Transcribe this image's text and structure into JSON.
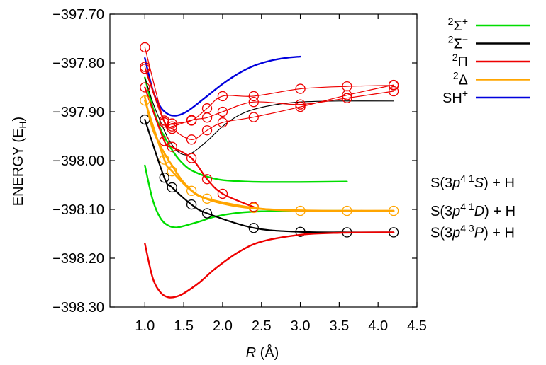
{
  "chart_data": {
    "type": "line",
    "xlabel_var": "R",
    "xlabel_unit": " (Å)",
    "ylabel_main": "ENERGY (E",
    "ylabel_sub": "H",
    "ylabel_end": ")",
    "xlim": [
      0.55,
      4.5
    ],
    "ylim": [
      -398.3,
      -397.7
    ],
    "xticks": [
      1.0,
      1.5,
      2.0,
      2.5,
      3.0,
      3.5,
      4.0,
      4.5
    ],
    "xtick_labels": [
      "1.0",
      "1.5",
      "2.0",
      "2.5",
      "3.0",
      "3.5",
      "4.0",
      "4.5"
    ],
    "yticks": [
      -397.7,
      -397.8,
      -397.9,
      -398.0,
      -398.1,
      -398.2,
      -398.3
    ],
    "ytick_labels": [
      "−397.70",
      "−397.80",
      "−397.90",
      "−398.00",
      "−398.10",
      "−398.20",
      "−398.30"
    ],
    "grid": false,
    "legend_position": "outside-right-top",
    "legend": [
      {
        "sup": "2",
        "base": "Σ",
        "sup2": "+",
        "color": "#00dd00"
      },
      {
        "sup": "2",
        "base": "Σ",
        "sup2": "−",
        "color": "#000000"
      },
      {
        "sup": "2",
        "base": "Π",
        "sup2": "",
        "color": "#ee0000"
      },
      {
        "sup": "2",
        "base": "Δ",
        "sup2": "",
        "color": "#ffa500"
      },
      {
        "sup": "",
        "base": "SH",
        "sup2": "+",
        "color": "#0000dd"
      }
    ],
    "asymptote_labels": [
      {
        "pre": "S(3",
        "orb": "p",
        "exp": "4 1",
        "term": "S",
        "post": ") + H",
        "y": -398.045
      },
      {
        "pre": "S(3",
        "orb": "p",
        "exp": "4 1",
        "term": "D",
        "post": ") + H",
        "y": -398.103
      },
      {
        "pre": "S(3",
        "orb": "p",
        "exp": "4 3",
        "term": "P",
        "post": ") + H",
        "y": -398.147
      }
    ],
    "series": [
      {
        "state": "SH+",
        "color": "#0000dd",
        "width": 2.4,
        "markers": false,
        "x": [
          1.0,
          1.1,
          1.2,
          1.3,
          1.4,
          1.5,
          1.6,
          1.8,
          2.0,
          2.2,
          2.4,
          2.6,
          2.8,
          3.0
        ],
        "y": [
          -397.79,
          -397.855,
          -397.89,
          -397.905,
          -397.908,
          -397.903,
          -397.893,
          -397.868,
          -397.843,
          -397.822,
          -397.806,
          -397.796,
          -397.79,
          -397.787
        ]
      },
      {
        "state": "2Σ+",
        "color": "#00dd00",
        "width": 2.4,
        "markers": false,
        "x": [
          1.0,
          1.1,
          1.2,
          1.3,
          1.4,
          1.5,
          1.7,
          1.9,
          2.2,
          2.5,
          3.0,
          3.6
        ],
        "y": [
          -398.01,
          -398.08,
          -398.118,
          -398.133,
          -398.137,
          -398.134,
          -398.125,
          -398.115,
          -398.107,
          -398.104,
          -398.103,
          -398.103
        ]
      },
      {
        "state": "2Σ+",
        "color": "#00dd00",
        "width": 2.4,
        "markers": false,
        "x": [
          1.0,
          1.1,
          1.2,
          1.3,
          1.4,
          1.5,
          1.6,
          1.8,
          2.0,
          2.3,
          2.6,
          3.0,
          3.6
        ],
        "y": [
          -397.83,
          -397.89,
          -397.935,
          -397.965,
          -397.99,
          -398.008,
          -398.02,
          -398.033,
          -398.04,
          -398.043,
          -398.044,
          -398.044,
          -398.043
        ]
      },
      {
        "state": "2Σ-",
        "color": "#000000",
        "width": 2.2,
        "markers": true,
        "x": [
          1.0,
          1.25,
          1.35,
          1.6,
          1.8,
          2.4,
          3.0,
          3.6,
          4.2
        ],
        "y": [
          -397.916,
          -398.035,
          -398.055,
          -398.09,
          -398.108,
          -398.138,
          -398.146,
          -398.147,
          -398.147
        ]
      },
      {
        "state": "2Σ-",
        "color": "#000000",
        "width": 1.2,
        "markers": false,
        "x": [
          1.0,
          1.1,
          1.2,
          1.3,
          1.4,
          1.5,
          1.6,
          1.8,
          2.0,
          2.2,
          2.4,
          2.7,
          3.0,
          3.5,
          4.2
        ],
        "y": [
          -397.83,
          -397.88,
          -397.92,
          -397.955,
          -397.978,
          -397.988,
          -397.985,
          -397.96,
          -397.93,
          -397.908,
          -397.895,
          -397.885,
          -397.88,
          -397.878,
          -397.878
        ]
      },
      {
        "state": "2Π",
        "color": "#ee0000",
        "width": 2.4,
        "markers": false,
        "x": [
          1.0,
          1.1,
          1.2,
          1.3,
          1.4,
          1.5,
          1.7,
          1.9,
          2.2,
          2.5,
          3.0,
          3.5,
          4.2
        ],
        "y": [
          -398.17,
          -398.24,
          -398.27,
          -398.28,
          -398.279,
          -398.272,
          -398.25,
          -398.222,
          -398.188,
          -398.166,
          -398.152,
          -398.148,
          -398.147
        ]
      },
      {
        "state": "2Π",
        "color": "#ee0000",
        "width": 2.2,
        "markers": true,
        "x": [
          1.0,
          1.25,
          1.35,
          1.6,
          1.8,
          2.0,
          2.4
        ],
        "y": [
          -397.85,
          -397.96,
          -397.972,
          -397.995,
          -398.038,
          -398.068,
          -398.095
        ]
      },
      {
        "state": "2Π",
        "color": "#ee0000",
        "width": 1.2,
        "markers": true,
        "x": [
          1.0,
          1.25,
          1.35,
          1.6,
          1.8,
          2.0,
          2.4,
          3.0,
          3.6,
          4.2
        ],
        "y": [
          -397.768,
          -397.922,
          -397.93,
          -397.917,
          -397.912,
          -397.9,
          -397.88,
          -397.885,
          -397.872,
          -397.858
        ]
      },
      {
        "state": "2Π",
        "color": "#ee0000",
        "width": 1.2,
        "markers": true,
        "x": [
          1.0,
          1.25,
          1.35,
          1.6,
          1.8,
          2.0,
          2.4,
          3.0,
          3.6,
          4.2
        ],
        "y": [
          -397.808,
          -397.918,
          -397.935,
          -397.957,
          -397.938,
          -397.922,
          -397.911,
          -397.89,
          -397.866,
          -397.845
        ]
      },
      {
        "state": "2Π",
        "color": "#ee0000",
        "width": 1.2,
        "markers": true,
        "x": [
          1.0,
          1.25,
          1.35,
          1.6,
          1.8,
          2.0,
          2.4,
          3.0,
          3.6,
          4.2
        ],
        "y": [
          -397.812,
          -397.922,
          -397.924,
          -397.918,
          -397.893,
          -397.868,
          -397.868,
          -397.853,
          -397.848,
          -397.846
        ]
      },
      {
        "state": "2Δ",
        "color": "#ffa500",
        "width": 2.6,
        "markers": true,
        "x": [
          1.0,
          1.25,
          1.35,
          1.6,
          1.8,
          2.4,
          3.0,
          3.6,
          4.2
        ],
        "y": [
          -397.877,
          -397.998,
          -398.022,
          -398.062,
          -398.078,
          -398.097,
          -398.103,
          -398.103,
          -398.103
        ]
      },
      {
        "state": "2Δ",
        "color": "#ffa500",
        "width": 2.6,
        "markers": false,
        "x": [
          1.0,
          1.1,
          1.25,
          1.35,
          1.5,
          1.7,
          2.0,
          2.4,
          3.0,
          3.6,
          4.2
        ],
        "y": [
          -397.87,
          -397.935,
          -397.985,
          -398.01,
          -398.045,
          -398.072,
          -398.088,
          -398.098,
          -398.102,
          -398.103,
          -398.103
        ]
      }
    ]
  }
}
